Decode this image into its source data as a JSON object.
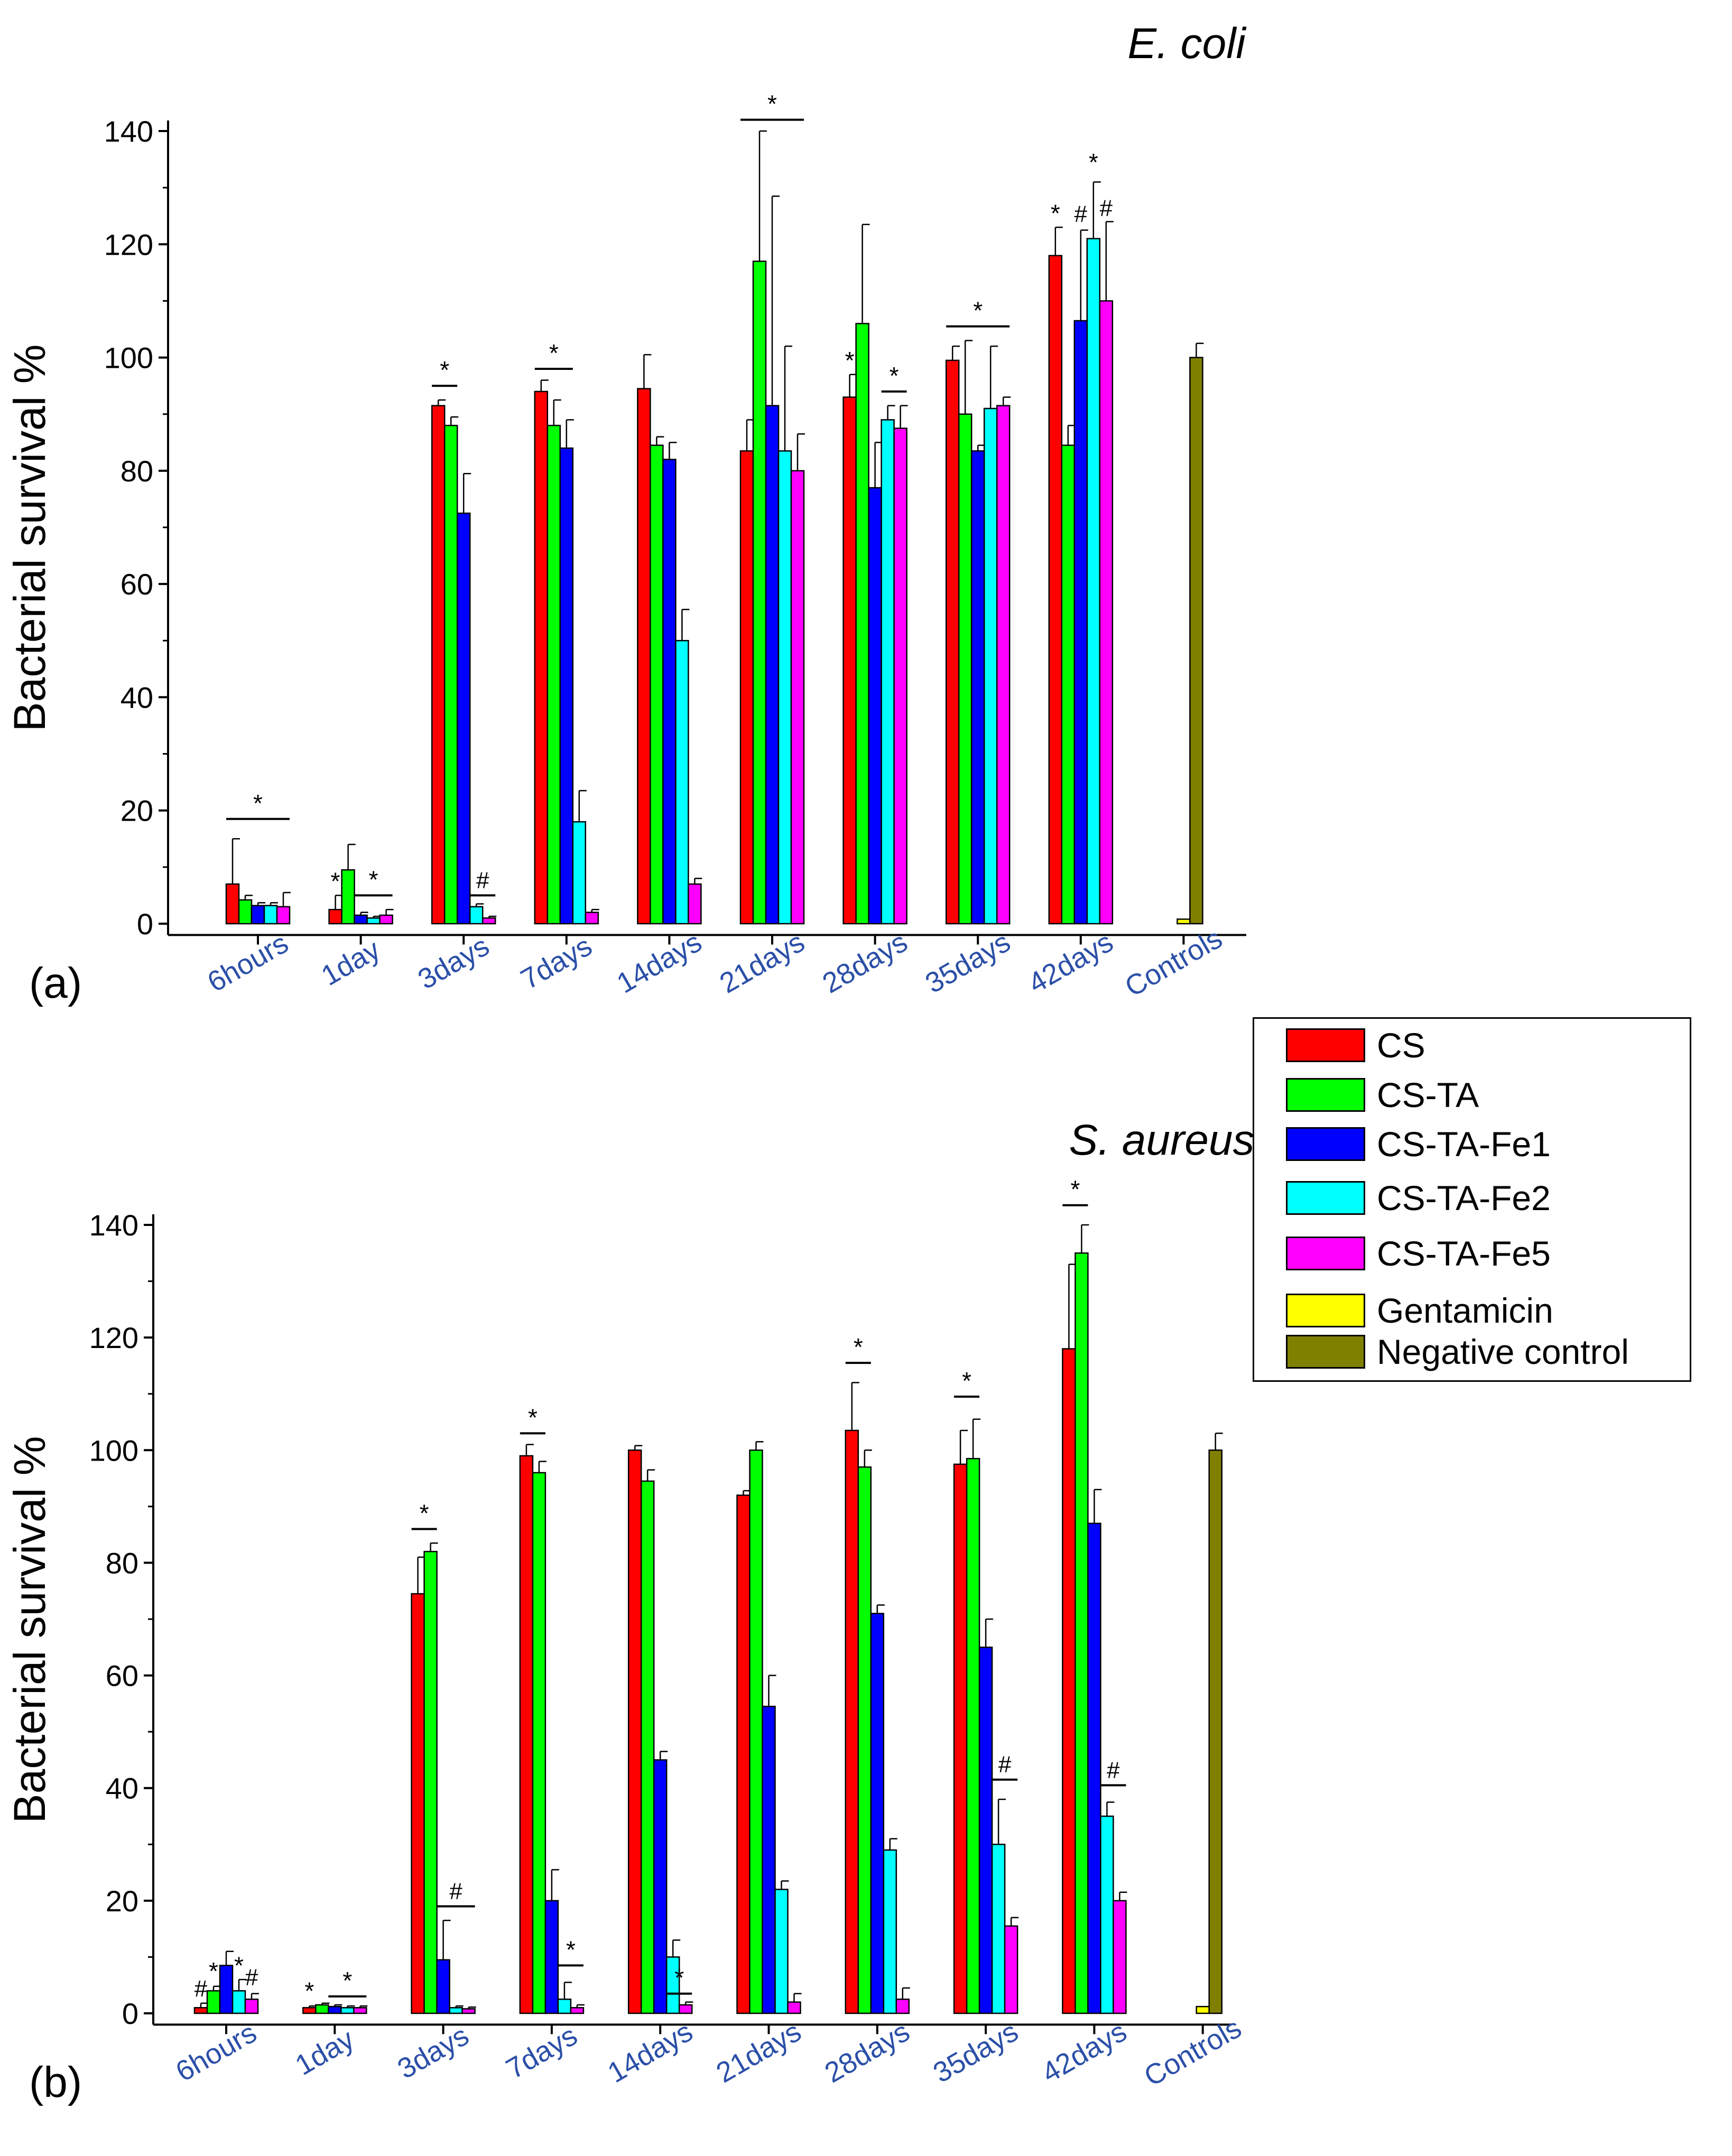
{
  "figure": {
    "panel_labels": [
      "(a)",
      "(b)"
    ],
    "titles": [
      "E. coli",
      "S. aureus"
    ]
  },
  "legend": {
    "items": [
      {
        "label": "CS",
        "color": "#ff0000"
      },
      {
        "label": "CS-TA",
        "color": "#00ff00"
      },
      {
        "label": "CS-TA-Fe1",
        "color": "#0000ff"
      },
      {
        "label": "CS-TA-Fe2",
        "color": "#00ffff"
      },
      {
        "label": "CS-TA-Fe5",
        "color": "#ff00ff"
      },
      {
        "label": "Gentamicin",
        "color": "#ffff00"
      },
      {
        "label": "Negative control",
        "color": "#808000"
      }
    ]
  },
  "chart_data": [
    {
      "type": "bar",
      "panel": "(a)",
      "title": "E. coli",
      "ylabel": "Bacterial survival %",
      "xlabel": "",
      "ylim": [
        -2,
        140
      ],
      "yticks": [
        0,
        20,
        40,
        60,
        80,
        100,
        120,
        140
      ],
      "categories": [
        "6hours",
        "1day",
        "3days",
        "7days",
        "14days",
        "21days",
        "28days",
        "35days",
        "42days",
        "Controls"
      ],
      "series": [
        {
          "name": "CS",
          "values": [
            7,
            2.5,
            91.5,
            94,
            94.5,
            83.5,
            93,
            99.5,
            118,
            null
          ],
          "errors": [
            8,
            2.5,
            1,
            2,
            6,
            5.5,
            4,
            2.5,
            5,
            null
          ]
        },
        {
          "name": "CS-TA",
          "values": [
            4.2,
            9.5,
            88,
            88,
            84.5,
            117,
            106,
            90,
            84.5,
            null
          ],
          "errors": [
            0.8,
            4.5,
            1.5,
            4.5,
            1.5,
            23,
            17.5,
            13,
            3.5,
            null
          ]
        },
        {
          "name": "CS-TA-Fe1",
          "values": [
            3.2,
            1.5,
            72.5,
            84,
            82,
            91.5,
            77,
            83.5,
            106.5,
            null
          ],
          "errors": [
            0.5,
            0.5,
            7,
            5,
            3,
            37,
            8,
            1,
            16,
            null
          ]
        },
        {
          "name": "CS-TA-Fe2",
          "values": [
            3.2,
            1,
            3,
            18,
            50,
            83.5,
            89,
            91,
            121,
            null
          ],
          "errors": [
            0.5,
            0.3,
            0.5,
            5.5,
            5.5,
            18.5,
            2.5,
            11,
            10,
            null
          ]
        },
        {
          "name": "CS-TA-Fe5",
          "values": [
            3,
            1.5,
            1,
            2,
            7,
            80,
            87.5,
            91.5,
            110,
            null
          ],
          "errors": [
            2.5,
            1,
            0.3,
            0.5,
            1,
            6.5,
            4,
            1.5,
            14,
            null
          ]
        },
        {
          "name": "Gentamicin",
          "values": [
            null,
            null,
            null,
            null,
            null,
            null,
            null,
            null,
            null,
            0.8
          ],
          "errors": [
            null,
            null,
            null,
            null,
            null,
            null,
            null,
            null,
            null,
            0
          ]
        },
        {
          "name": "Negative control",
          "values": [
            null,
            null,
            null,
            null,
            null,
            null,
            null,
            null,
            null,
            100
          ],
          "errors": [
            null,
            null,
            null,
            null,
            null,
            null,
            null,
            null,
            null,
            2.5
          ]
        }
      ],
      "annotations": [
        {
          "text": "*",
          "bar": true,
          "x0": [
            0,
            0
          ],
          "x1": [
            0,
            4
          ],
          "y": 18.5
        },
        {
          "text": "*",
          "x0": [
            1,
            0
          ],
          "y": 6
        },
        {
          "text": "*",
          "bar": true,
          "x0": [
            1,
            2
          ],
          "x1": [
            1,
            4
          ],
          "y": 5
        },
        {
          "text": "*",
          "bar": true,
          "x0": [
            2,
            0
          ],
          "x1": [
            2,
            1
          ],
          "y": 95
        },
        {
          "text": "#",
          "bar": true,
          "x0": [
            2,
            3
          ],
          "x1": [
            2,
            4
          ],
          "y": 5
        },
        {
          "text": "*",
          "bar": true,
          "x0": [
            3,
            0
          ],
          "x1": [
            3,
            2
          ],
          "y": 98
        },
        {
          "text": "*",
          "bar": true,
          "x0": [
            5,
            0
          ],
          "x1": [
            5,
            4
          ],
          "y": 142
        },
        {
          "text": "*",
          "x0": [
            6,
            0
          ],
          "y": 98
        },
        {
          "text": "*",
          "bar": true,
          "x0": [
            6,
            3
          ],
          "x1": [
            6,
            4
          ],
          "y": 94
        },
        {
          "text": "*",
          "bar": true,
          "x0": [
            7,
            0
          ],
          "x1": [
            7,
            4
          ],
          "y": 105.5
        },
        {
          "text": "*",
          "x0": [
            8,
            0
          ],
          "y": 124
        },
        {
          "text": "#",
          "x0": [
            8,
            2
          ],
          "y": 124
        },
        {
          "text": "*",
          "x0": [
            8,
            3
          ],
          "y": 133
        },
        {
          "text": "#",
          "x0": [
            8,
            4
          ],
          "y": 125
        }
      ]
    },
    {
      "type": "bar",
      "panel": "(b)",
      "title": "S. aureus",
      "ylabel": "Bacterial survival %",
      "xlabel": "",
      "ylim": [
        -2,
        140
      ],
      "yticks": [
        0,
        20,
        40,
        60,
        80,
        100,
        120,
        140
      ],
      "categories": [
        "6hours",
        "1day",
        "3days",
        "7days",
        "14days",
        "21days",
        "28days",
        "35days",
        "42days",
        "Controls"
      ],
      "series": [
        {
          "name": "CS",
          "values": [
            1,
            1,
            74.5,
            99,
            100,
            92,
            103.5,
            97.5,
            118,
            null
          ],
          "errors": [
            0.8,
            0.3,
            6.5,
            2,
            0.8,
            0.8,
            8.5,
            6,
            15,
            null
          ]
        },
        {
          "name": "CS-TA",
          "values": [
            4,
            1.5,
            82,
            96,
            94.5,
            100,
            97,
            98.5,
            135,
            null
          ],
          "errors": [
            0.8,
            0.3,
            1.5,
            2,
            2,
            1.5,
            3,
            7,
            5,
            null
          ]
        },
        {
          "name": "CS-TA-Fe1",
          "values": [
            8.5,
            1.2,
            9.5,
            20,
            45,
            54.5,
            71,
            65,
            87,
            null
          ],
          "errors": [
            2.5,
            0.3,
            7,
            5.5,
            1.5,
            5.5,
            1.5,
            5,
            6,
            null
          ]
        },
        {
          "name": "CS-TA-Fe2",
          "values": [
            4,
            1,
            1,
            2.5,
            10,
            22,
            29,
            30,
            35,
            null
          ],
          "errors": [
            2,
            0.3,
            0.3,
            3,
            3,
            1.5,
            2,
            8,
            2.5,
            null
          ]
        },
        {
          "name": "CS-TA-Fe5",
          "values": [
            2.5,
            1,
            0.8,
            1,
            1.5,
            2,
            2.5,
            15.5,
            20,
            null
          ],
          "errors": [
            1,
            0.3,
            0.3,
            0.5,
            0.5,
            1.5,
            2,
            1.5,
            1.5,
            null
          ]
        },
        {
          "name": "Gentamicin",
          "values": [
            null,
            null,
            null,
            null,
            null,
            null,
            null,
            null,
            null,
            1.2
          ],
          "errors": [
            null,
            null,
            null,
            null,
            null,
            null,
            null,
            null,
            null,
            0
          ]
        },
        {
          "name": "Negative control",
          "values": [
            null,
            null,
            null,
            null,
            null,
            null,
            null,
            null,
            null,
            100
          ],
          "errors": [
            null,
            null,
            null,
            null,
            null,
            null,
            null,
            null,
            null,
            3
          ]
        }
      ],
      "annotations": [
        {
          "text": "#",
          "x0": [
            0,
            0
          ],
          "y": 3
        },
        {
          "text": "*",
          "x0": [
            0,
            1
          ],
          "y": 6
        },
        {
          "text": "*",
          "x0": [
            0,
            3
          ],
          "y": 7
        },
        {
          "text": "#",
          "x0": [
            0,
            4
          ],
          "y": 5
        },
        {
          "text": "*",
          "x0": [
            1,
            0
          ],
          "y": 2.5
        },
        {
          "text": "*",
          "bar": true,
          "x0": [
            1,
            2
          ],
          "x1": [
            1,
            4
          ],
          "y": 3
        },
        {
          "text": "*",
          "bar": true,
          "x0": [
            2,
            0
          ],
          "x1": [
            2,
            1
          ],
          "y": 86
        },
        {
          "text": "#",
          "bar": true,
          "x0": [
            2,
            2
          ],
          "x1": [
            2,
            4
          ],
          "y": 19
        },
        {
          "text": "*",
          "bar": true,
          "x0": [
            3,
            3
          ],
          "x1": [
            3,
            4
          ],
          "y": 8.5
        },
        {
          "text": "*",
          "bar": true,
          "x0": [
            3,
            0
          ],
          "x1": [
            3,
            1
          ],
          "y": 103
        },
        {
          "text": "*",
          "bar": true,
          "x0": [
            4,
            3
          ],
          "x1": [
            4,
            4
          ],
          "y": 3.5
        },
        {
          "text": "*",
          "bar": true,
          "x0": [
            6,
            0
          ],
          "x1": [
            6,
            1
          ],
          "y": 115.5
        },
        {
          "text": "*",
          "bar": true,
          "x0": [
            7,
            0
          ],
          "x1": [
            7,
            1
          ],
          "y": 109.5
        },
        {
          "text": "#",
          "bar": true,
          "x0": [
            7,
            3
          ],
          "x1": [
            7,
            4
          ],
          "y": 41.5
        },
        {
          "text": "*",
          "bar": true,
          "x0": [
            8,
            0
          ],
          "x1": [
            8,
            1
          ],
          "y": 143.5
        },
        {
          "text": "#",
          "bar": true,
          "x0": [
            8,
            3
          ],
          "x1": [
            8,
            4
          ],
          "y": 40.5
        }
      ]
    }
  ]
}
